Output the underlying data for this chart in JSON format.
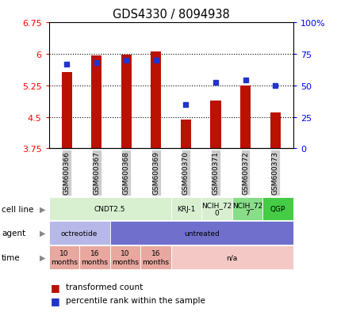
{
  "title": "GDS4330 / 8094938",
  "samples": [
    "GSM600366",
    "GSM600367",
    "GSM600368",
    "GSM600369",
    "GSM600370",
    "GSM600371",
    "GSM600372",
    "GSM600373"
  ],
  "bar_values": [
    5.57,
    5.96,
    5.97,
    6.05,
    4.43,
    4.88,
    5.25,
    4.6
  ],
  "percentile_values": [
    67,
    68,
    70,
    70,
    35,
    52,
    54,
    50
  ],
  "ylim_left": [
    3.75,
    6.75
  ],
  "ylim_right": [
    0,
    100
  ],
  "yticks_left": [
    3.75,
    4.5,
    5.25,
    6.0,
    6.75
  ],
  "yticks_right": [
    0,
    25,
    50,
    75,
    100
  ],
  "ytick_labels_left": [
    "3.75",
    "4.5",
    "5.25",
    "6",
    "6.75"
  ],
  "ytick_labels_right": [
    "0",
    "25",
    "50",
    "75",
    "100%"
  ],
  "bar_color": "#bb1100",
  "dot_color": "#2233cc",
  "bar_bottom": 3.75,
  "cell_line_groups": [
    {
      "label": "CNDT2.5",
      "start": 0,
      "end": 4,
      "color": "#d8f0d0"
    },
    {
      "label": "KRJ-1",
      "start": 4,
      "end": 5,
      "color": "#d8f0d0"
    },
    {
      "label": "NCIH_72\n0",
      "start": 5,
      "end": 6,
      "color": "#d8f0d0"
    },
    {
      "label": "NCIH_72\n7",
      "start": 6,
      "end": 7,
      "color": "#88dd88"
    },
    {
      "label": "QGP",
      "start": 7,
      "end": 8,
      "color": "#44cc44"
    }
  ],
  "agent_groups": [
    {
      "label": "octreotide",
      "start": 0,
      "end": 2,
      "color": "#b8b8e8"
    },
    {
      "label": "untreated",
      "start": 2,
      "end": 8,
      "color": "#7070cc"
    }
  ],
  "time_groups": [
    {
      "label": "10\nmonths",
      "start": 0,
      "end": 1,
      "color": "#e8a8a0"
    },
    {
      "label": "16\nmonths",
      "start": 1,
      "end": 2,
      "color": "#e8a8a0"
    },
    {
      "label": "10\nmonths",
      "start": 2,
      "end": 3,
      "color": "#e8a8a0"
    },
    {
      "label": "16\nmonths",
      "start": 3,
      "end": 4,
      "color": "#e8a8a0"
    },
    {
      "label": "n/a",
      "start": 4,
      "end": 8,
      "color": "#f4c8c4"
    }
  ],
  "legend_items": [
    {
      "label": "transformed count",
      "color": "#bb1100"
    },
    {
      "label": "percentile rank within the sample",
      "color": "#2233cc"
    }
  ],
  "bg_color": "#ffffff",
  "sample_bg_color": "#cccccc"
}
